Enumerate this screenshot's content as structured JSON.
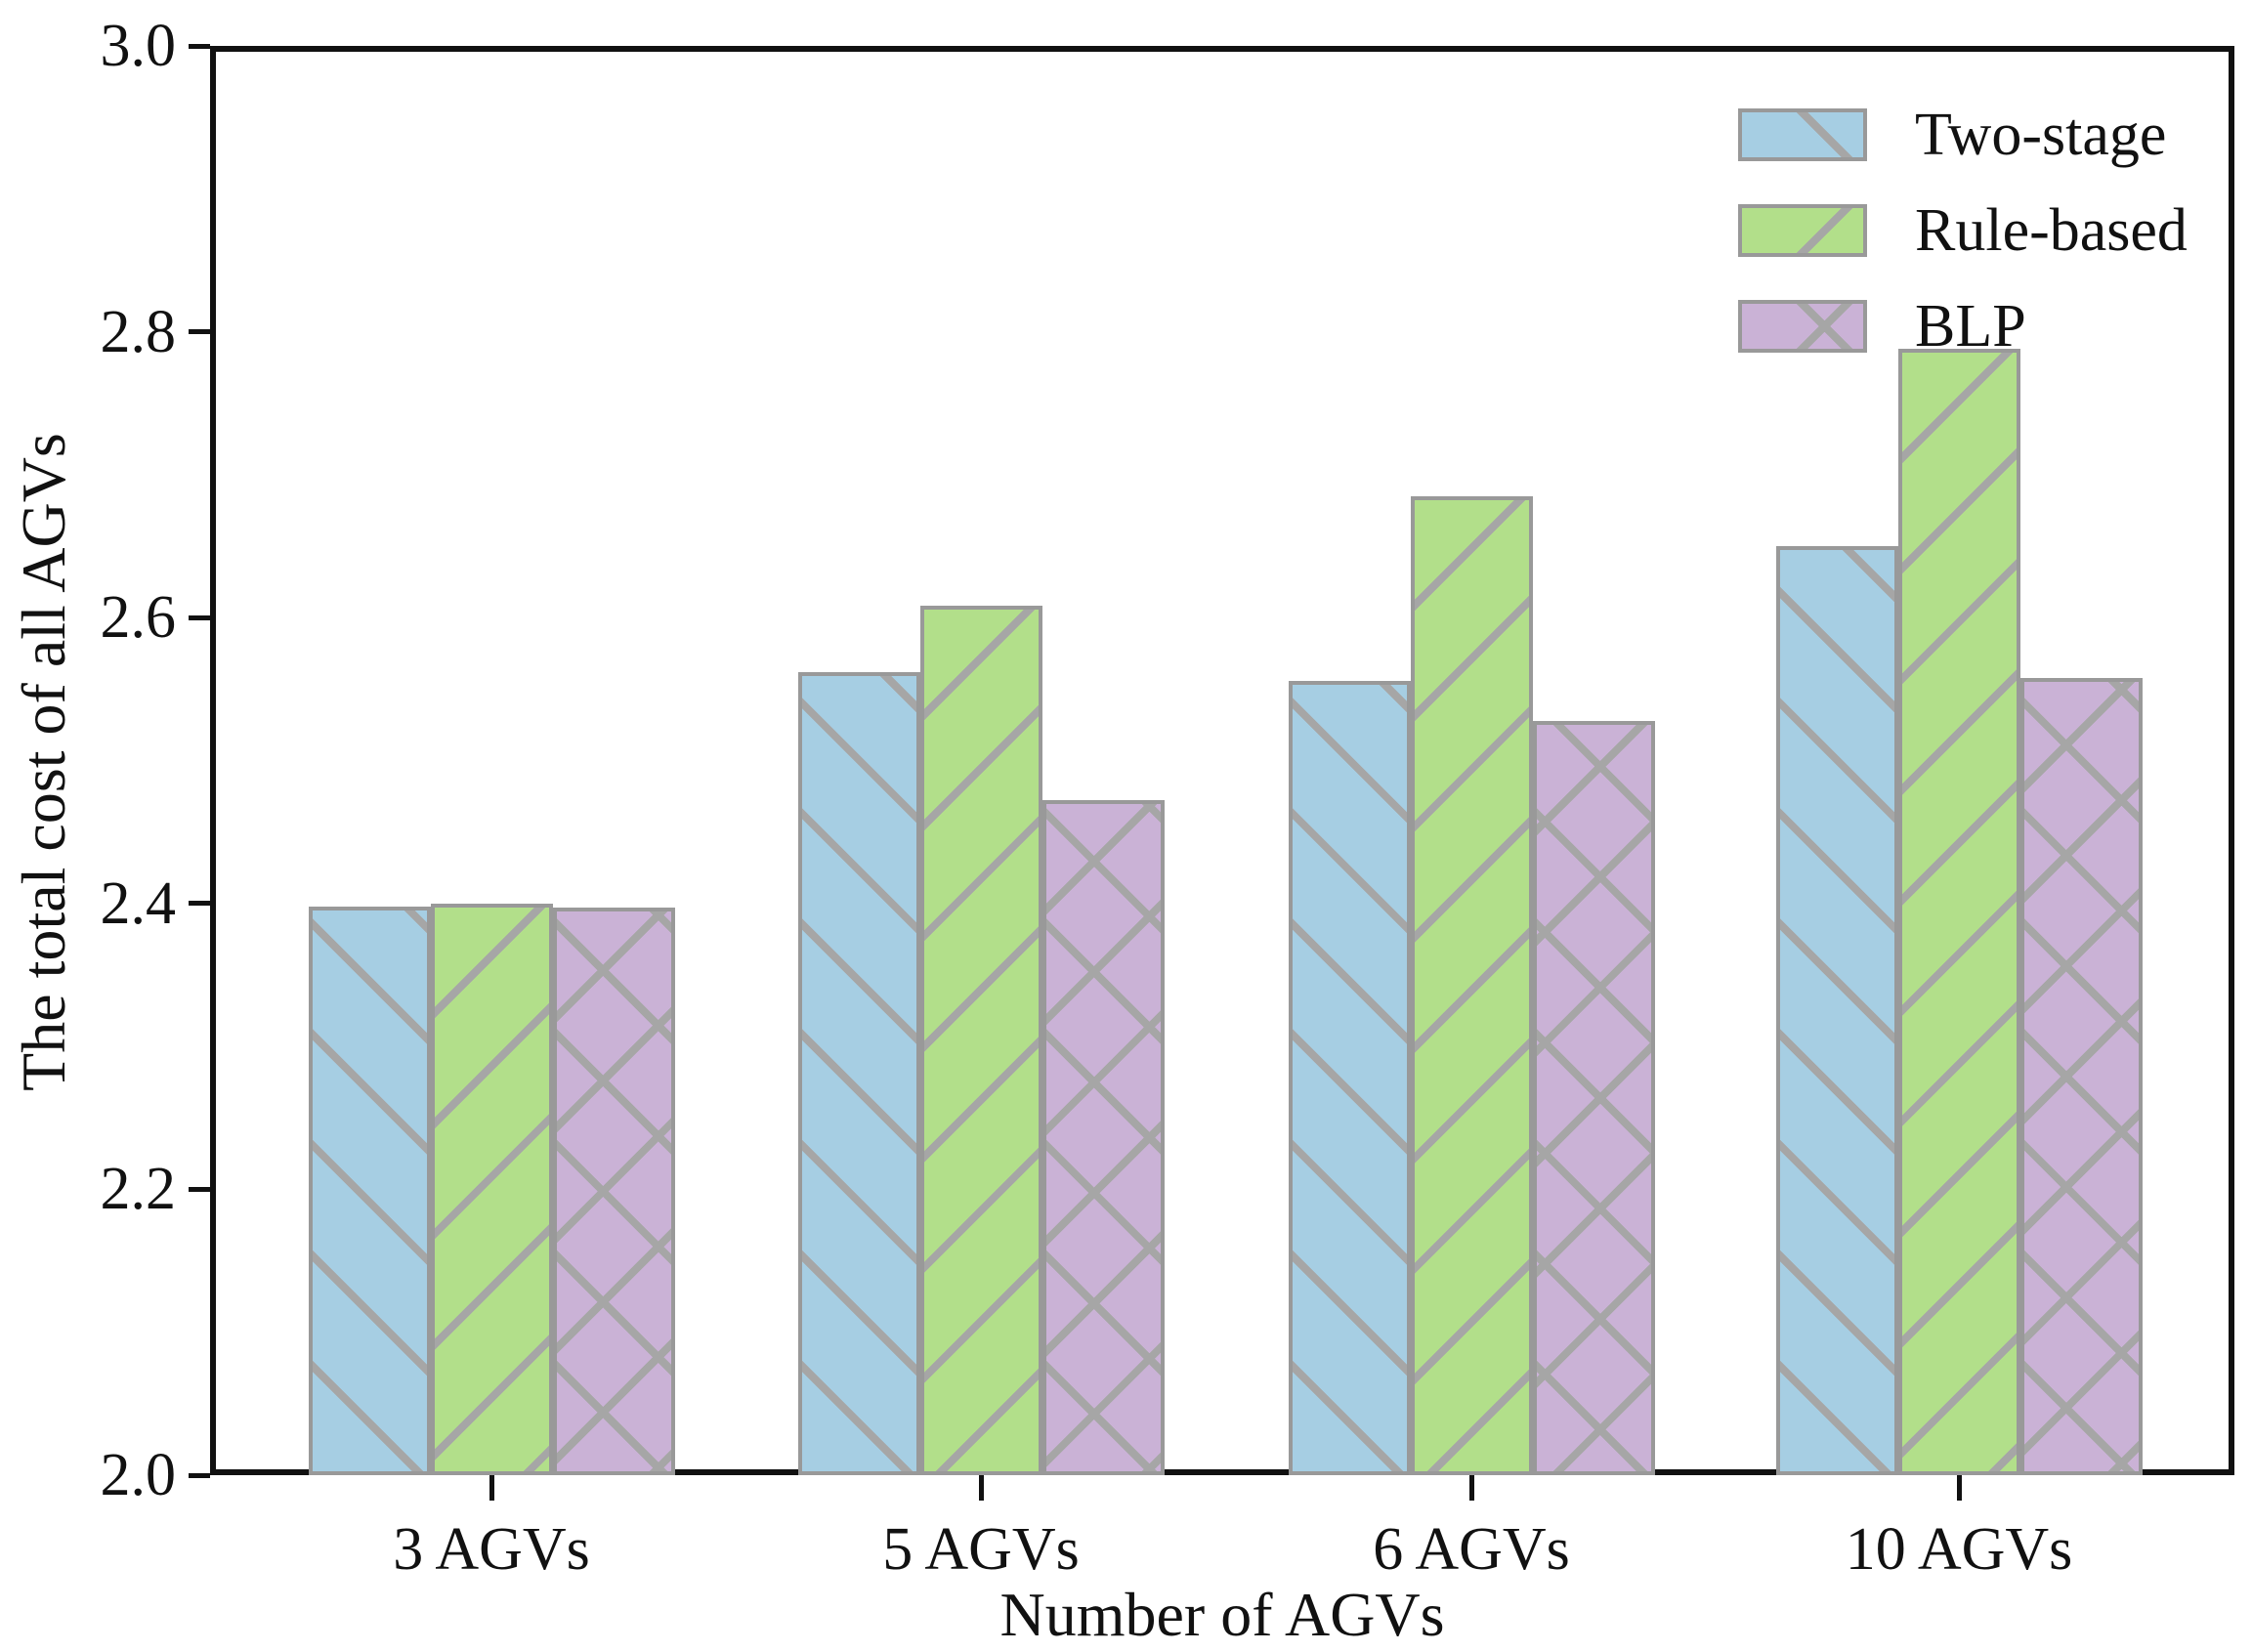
{
  "chart_data": {
    "type": "bar",
    "title": "",
    "categories": [
      "3 AGVs",
      "5 AGVs",
      "6 AGVs",
      "10 AGVs"
    ],
    "series": [
      {
        "name": "Two-stage",
        "color": "#a6cee3",
        "hatch": "/",
        "values": [
          2.398,
          2.562,
          2.556,
          2.65
        ]
      },
      {
        "name": "Rule-based",
        "color": "#b2df8a",
        "hatch": "\\",
        "values": [
          2.4,
          2.608,
          2.685,
          2.788
        ]
      },
      {
        "name": "BLP",
        "color": "#cab2d6",
        "hatch": "x",
        "values": [
          2.397,
          2.472,
          2.528,
          2.558
        ]
      }
    ],
    "xlabel": "Number of AGVs",
    "ylabel": "The total cost of all AGVs",
    "ylim": [
      2.0,
      3.0
    ],
    "yticks": [
      "2.0",
      "2.2",
      "2.4",
      "2.6",
      "2.8",
      "3.0"
    ],
    "ytick_values": [
      2.0,
      2.2,
      2.4,
      2.6,
      2.8,
      3.0
    ],
    "grid": false,
    "legend_position": "upper right",
    "bar_edge_color": "#999999",
    "hatch_color": "#a6a6a6",
    "axis_color": "#111111",
    "background_color": "#ffffff"
  }
}
